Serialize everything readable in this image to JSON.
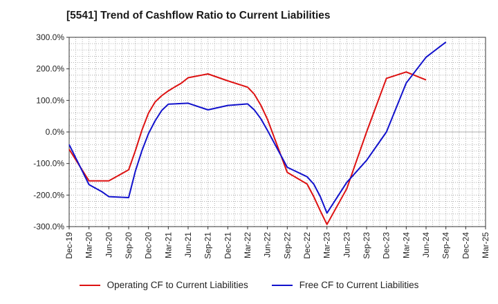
{
  "chart_data": {
    "type": "line",
    "title": "[5541]  Trend of Cashflow Ratio to Current Liabilities",
    "xlabel": "",
    "ylabel": "",
    "ylim": [
      -300,
      300
    ],
    "yticks": [
      300,
      200,
      100,
      0,
      -100,
      -200,
      -300
    ],
    "ytick_labels": [
      "300.0%",
      "200.0%",
      "100.0%",
      "0.0%",
      "-100.0%",
      "-200.0%",
      "-300.0%"
    ],
    "x_start": "2019-12",
    "x_end": "2025-03",
    "xtick_labels": [
      "Dec-19",
      "Mar-20",
      "Jun-20",
      "Sep-20",
      "Dec-20",
      "Mar-21",
      "Jun-21",
      "Sep-21",
      "Dec-21",
      "Mar-22",
      "Jun-22",
      "Sep-22",
      "Dec-22",
      "Mar-23",
      "Jun-23",
      "Sep-23",
      "Dec-23",
      "Mar-24",
      "Jun-24",
      "Sep-24",
      "Dec-24",
      "Mar-25"
    ],
    "grid": true,
    "legend_position": "bottom",
    "series": [
      {
        "name": "Operating CF to Current Liabilities",
        "color": "#dd1111",
        "points": [
          [
            "2019-12",
            -55
          ],
          [
            "2020-03",
            -155
          ],
          [
            "2020-06",
            -155
          ],
          [
            "2020-09",
            -120
          ],
          [
            "2020-10",
            -60
          ],
          [
            "2020-11",
            5
          ],
          [
            "2020-12",
            60
          ],
          [
            "2021-01",
            95
          ],
          [
            "2021-02",
            115
          ],
          [
            "2021-03",
            130
          ],
          [
            "2021-04",
            143
          ],
          [
            "2021-05",
            155
          ],
          [
            "2021-06",
            172
          ],
          [
            "2021-09",
            184
          ],
          [
            "2021-12",
            162
          ],
          [
            "2022-03",
            142
          ],
          [
            "2022-04",
            120
          ],
          [
            "2022-05",
            85
          ],
          [
            "2022-06",
            40
          ],
          [
            "2022-09",
            -128
          ],
          [
            "2022-12",
            -165
          ],
          [
            "2023-01",
            -205
          ],
          [
            "2023-02",
            -250
          ],
          [
            "2023-03",
            -293
          ],
          [
            "2023-06",
            -180
          ],
          [
            "2023-09",
            0
          ],
          [
            "2023-12",
            170
          ],
          [
            "2024-03",
            190
          ],
          [
            "2024-06",
            165
          ]
        ]
      },
      {
        "name": "Free CF to Current Liabilities",
        "color": "#1111cc",
        "points": [
          [
            "2019-12",
            -40
          ],
          [
            "2020-03",
            -167
          ],
          [
            "2020-05",
            -190
          ],
          [
            "2020-06",
            -205
          ],
          [
            "2020-09",
            -208
          ],
          [
            "2020-10",
            -125
          ],
          [
            "2020-11",
            -60
          ],
          [
            "2020-12",
            -5
          ],
          [
            "2021-01",
            35
          ],
          [
            "2021-02",
            68
          ],
          [
            "2021-03",
            88
          ],
          [
            "2021-06",
            91
          ],
          [
            "2021-09",
            70
          ],
          [
            "2021-12",
            84
          ],
          [
            "2022-03",
            89
          ],
          [
            "2022-04",
            70
          ],
          [
            "2022-05",
            42
          ],
          [
            "2022-06",
            5
          ],
          [
            "2022-09",
            -112
          ],
          [
            "2022-12",
            -142
          ],
          [
            "2023-01",
            -165
          ],
          [
            "2023-02",
            -205
          ],
          [
            "2023-03",
            -257
          ],
          [
            "2023-06",
            -160
          ],
          [
            "2023-09",
            -90
          ],
          [
            "2023-12",
            0
          ],
          [
            "2024-03",
            155
          ],
          [
            "2024-06",
            237
          ],
          [
            "2024-09",
            285
          ]
        ]
      }
    ]
  }
}
